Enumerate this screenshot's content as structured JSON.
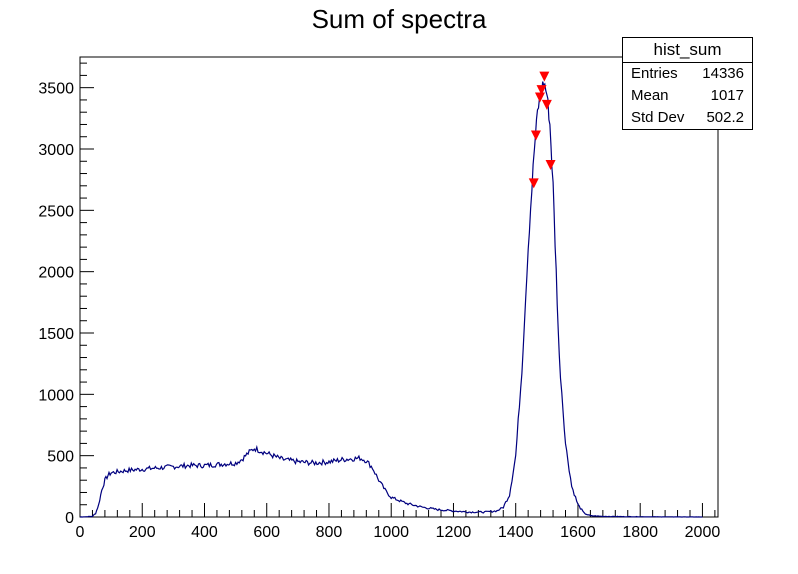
{
  "chart_data": {
    "type": "line",
    "title": "Sum of spectra",
    "xlabel": "",
    "ylabel": "",
    "xlim": [
      0,
      2050
    ],
    "ylim": [
      0,
      3750
    ],
    "x_ticks": [
      0,
      200,
      400,
      600,
      800,
      1000,
      1200,
      1400,
      1600,
      1800,
      2000
    ],
    "y_ticks": [
      0,
      500,
      1000,
      1500,
      2000,
      2500,
      3000,
      3500
    ],
    "grid": false,
    "line_color": "#00007f",
    "marker_color": "#ff0000",
    "series": [
      {
        "x": [
          0,
          40,
          50,
          60,
          70,
          80,
          90,
          100,
          150,
          200,
          250,
          300,
          350,
          400,
          450,
          500,
          520,
          540,
          560,
          580,
          600,
          650,
          700,
          750,
          800,
          850,
          900,
          920,
          940,
          960,
          980,
          1000,
          1050,
          1100,
          1150,
          1200,
          1250,
          1300,
          1340,
          1360,
          1380,
          1400,
          1420,
          1440,
          1460,
          1470,
          1480,
          1490,
          1500,
          1510,
          1520,
          1530,
          1540,
          1560,
          1580,
          1600,
          1620,
          1640,
          1680,
          1750,
          1800,
          1900,
          2000
        ],
        "y": [
          0,
          5,
          30,
          100,
          220,
          300,
          340,
          360,
          380,
          390,
          400,
          410,
          420,
          420,
          430,
          440,
          470,
          520,
          560,
          540,
          520,
          470,
          450,
          440,
          450,
          470,
          480,
          460,
          400,
          300,
          220,
          160,
          110,
          80,
          60,
          50,
          40,
          40,
          50,
          80,
          180,
          500,
          1200,
          2200,
          3000,
          3300,
          3450,
          3550,
          3450,
          3200,
          2700,
          2000,
          1300,
          600,
          250,
          100,
          30,
          10,
          5,
          3,
          2,
          1,
          0
        ]
      }
    ],
    "markers": [
      {
        "x": 1458,
        "y": 2720
      },
      {
        "x": 1465,
        "y": 3110
      },
      {
        "x": 1478,
        "y": 3420
      },
      {
        "x": 1483,
        "y": 3480
      },
      {
        "x": 1492,
        "y": 3590
      },
      {
        "x": 1500,
        "y": 3360
      },
      {
        "x": 1512,
        "y": 2870
      }
    ],
    "legend": "top-right",
    "stats": {
      "name": "hist_sum",
      "rows": [
        {
          "label": "Entries",
          "value": "14336"
        },
        {
          "label": "Mean",
          "value": "1017"
        },
        {
          "label": "Std Dev",
          "value": "502.2"
        }
      ]
    }
  }
}
